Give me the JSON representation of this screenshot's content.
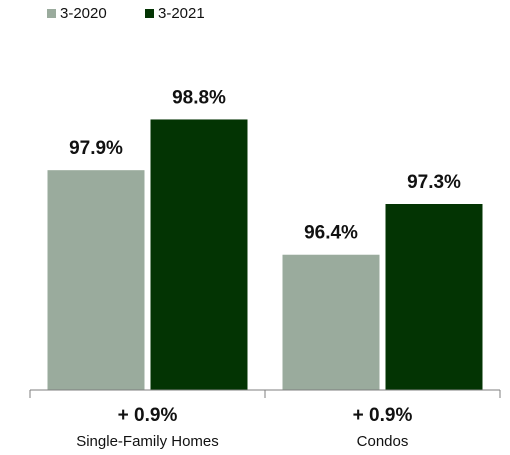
{
  "chart_data": {
    "type": "bar",
    "title": "",
    "xlabel": "",
    "ylabel": "",
    "ylim": [
      94,
      99.5
    ],
    "grid": false,
    "legend_position": "top-left",
    "categories": [
      "Single-Family Homes",
      "Condos"
    ],
    "category_changes": [
      "+ 0.9%",
      "+ 0.9%"
    ],
    "series": [
      {
        "name": "3-2020",
        "color": "#9aab9d",
        "values": [
          97.9,
          96.4
        ],
        "data_labels": [
          "97.9%",
          "96.4%"
        ]
      },
      {
        "name": "3-2021",
        "color": "#033403",
        "values": [
          98.8,
          97.3
        ],
        "data_labels": [
          "98.8%",
          "97.3%"
        ]
      }
    ]
  }
}
